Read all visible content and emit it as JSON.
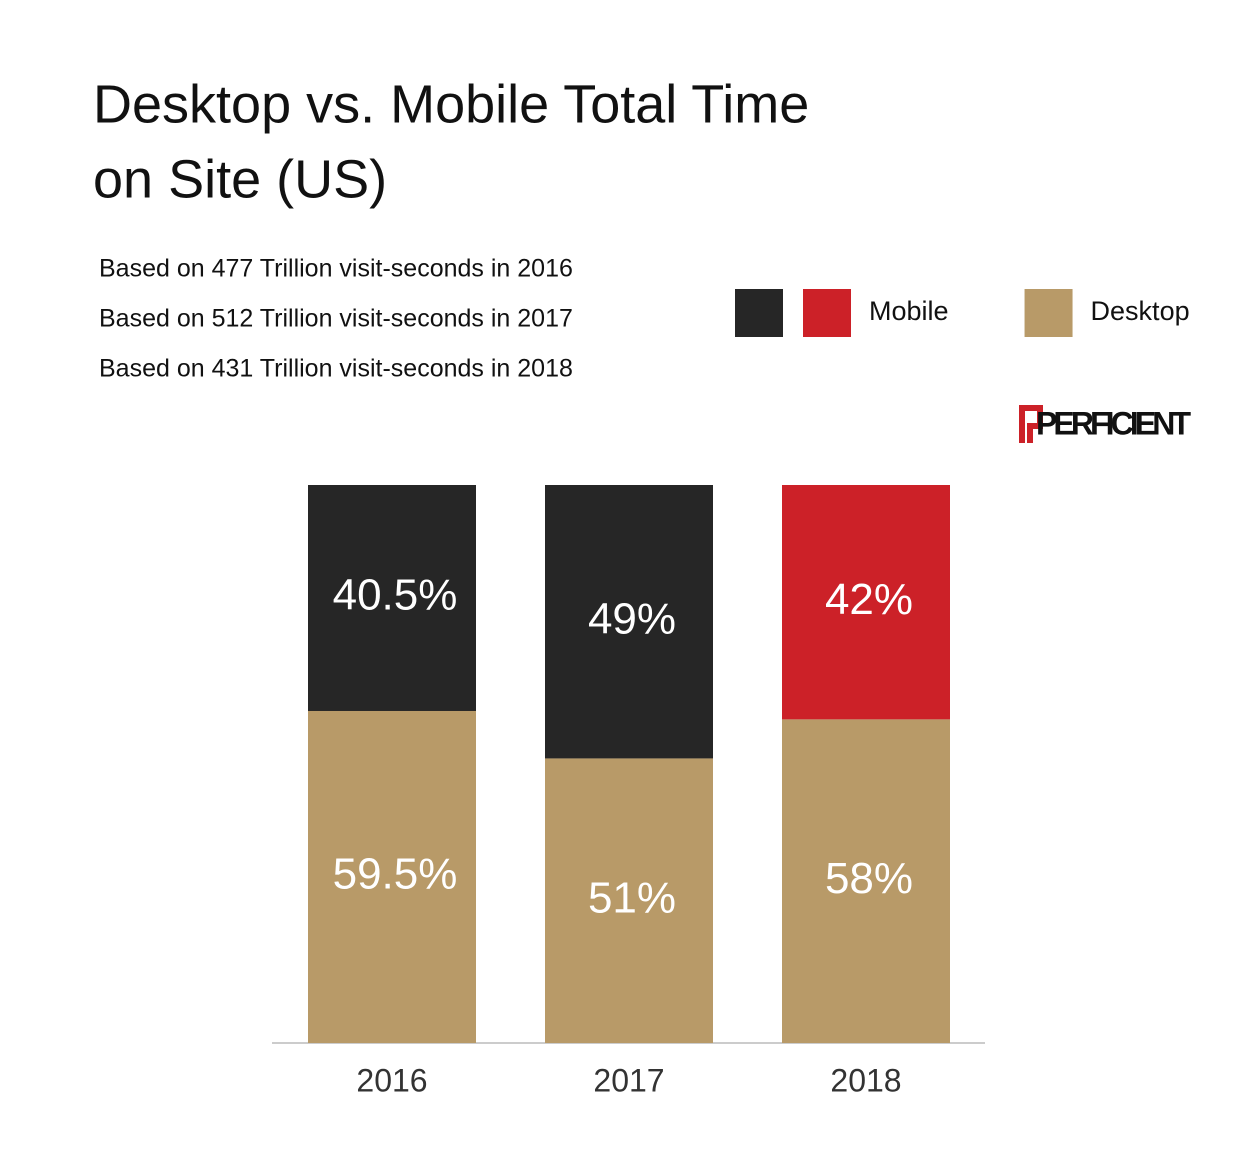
{
  "chart_data": {
    "type": "stacked-bar",
    "title": [
      "Desktop vs. Mobile Total Time",
      "on Site (US)"
    ],
    "notes": [
      "Based on 477 Trillion visit-seconds in 2016",
      "Based on 512 Trillion visit-seconds in 2017",
      "Based on 431 Trillion visit-seconds in 2018"
    ],
    "logo": "PERFICIENT",
    "categories": [
      "2016",
      "2017",
      "2018"
    ],
    "series": [
      {
        "name": "Desktop",
        "color": "#b89a68",
        "values": [
          59.5,
          51,
          58
        ],
        "value_labels": [
          "59.5%",
          "51%",
          "58%"
        ]
      },
      {
        "name": "Mobile",
        "colors": [
          "#262626",
          "#262626",
          "#cc2128"
        ],
        "values": [
          40.5,
          49,
          42
        ],
        "value_labels": [
          "40.5%",
          "49%",
          "42%"
        ]
      }
    ],
    "ylim": [
      0,
      100
    ]
  }
}
